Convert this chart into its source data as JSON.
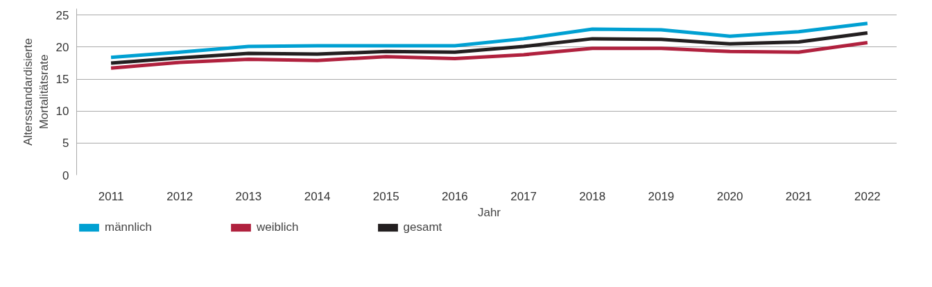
{
  "chart_data": {
    "type": "line",
    "xlabel": "Jahr",
    "ylabel": "Altersstandardisierte\nMortalitätsrate",
    "categories": [
      "2011",
      "2012",
      "2013",
      "2014",
      "2015",
      "2016",
      "2017",
      "2018",
      "2019",
      "2020",
      "2021",
      "2022"
    ],
    "series": [
      {
        "name": "männlich",
        "color": "#00a0d2",
        "values": [
          18.4,
          19.2,
          20.1,
          20.2,
          20.2,
          20.2,
          21.3,
          22.8,
          22.7,
          21.7,
          22.4,
          23.7
        ]
      },
      {
        "name": "weiblich",
        "color": "#b0213e",
        "values": [
          16.7,
          17.6,
          18.1,
          17.9,
          18.5,
          18.2,
          18.8,
          19.8,
          19.8,
          19.3,
          19.2,
          20.7
        ]
      },
      {
        "name": "gesamt",
        "color": "#231f20",
        "values": [
          17.5,
          18.3,
          19.0,
          18.9,
          19.3,
          19.2,
          20.1,
          21.3,
          21.2,
          20.5,
          20.8,
          22.2
        ]
      }
    ],
    "ylim": [
      0,
      26
    ],
    "yticks": [
      0,
      5,
      10,
      15,
      20,
      25
    ],
    "grid": "y",
    "legend": "bottom left",
    "marker": "none",
    "line_style": "solid"
  }
}
